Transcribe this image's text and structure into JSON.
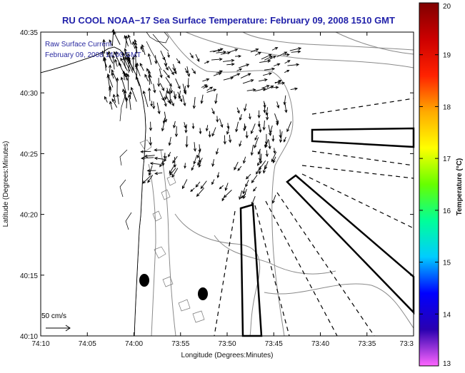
{
  "title": "RU COOL  NOAA−17  Sea Surface Temperature:  February 09, 2008 1510 GMT",
  "annotation": {
    "line1": "Raw Surface Current",
    "line2": "February 09, 2008 14:00 GMT"
  },
  "scale": {
    "label": "50 cm/s"
  },
  "axes": {
    "xlabel": "Longitude (Degrees:Minutes)",
    "ylabel": "Latitude (Degrees:Minutes)",
    "xticks": [
      "74:10",
      "74:05",
      "74:00",
      "73:55",
      "73:50",
      "73:45",
      "73:40",
      "73:35",
      "73:3"
    ],
    "yticks": [
      "40:35",
      "40:30",
      "40:25",
      "40:20",
      "40:15",
      "40:10"
    ]
  },
  "colorbar": {
    "label": "Temperature (°C)",
    "min": 13,
    "max": 20,
    "ticks": [
      "20",
      "19",
      "18",
      "17",
      "16",
      "15",
      "14",
      "13"
    ],
    "stops": [
      "#ff66ff",
      "#2a00b0",
      "#0000ff",
      "#00ccff",
      "#00ff99",
      "#66ff00",
      "#ffff00",
      "#ffaa00",
      "#ff2200",
      "#cc0000",
      "#800000"
    ]
  },
  "chart_data": {
    "type": "map",
    "title": "RU COOL  NOAA−17  Sea Surface Temperature:  February 09, 2008 1510 GMT",
    "xlabel": "Longitude (Degrees:Minutes)",
    "ylabel": "Latitude (Degrees:Minutes)",
    "x_range_deg": [
      -74.1667,
      -73.5167
    ],
    "y_range_deg": [
      40.1667,
      40.5833
    ],
    "colorbar_range_c": [
      13,
      20
    ],
    "vector_field": "Raw Surface Current, February 09, 2008 14:00 GMT",
    "scale_vector": "50 cm/s",
    "buoys": [
      {
        "name": "buoy-1",
        "lon": -73.9833,
        "lat": 40.2417
      },
      {
        "name": "buoy-2",
        "lon": -73.875,
        "lat": 40.225
      }
    ]
  }
}
